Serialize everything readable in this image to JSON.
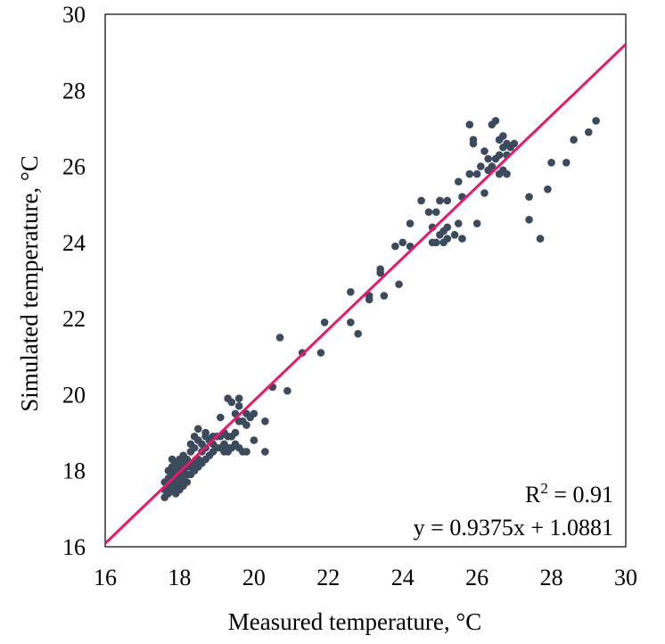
{
  "chart_data": {
    "type": "scatter",
    "xlabel": "Measured temperature, °C",
    "ylabel": "Simulated temperature, °C",
    "xlim": [
      16,
      30
    ],
    "ylim": [
      16,
      30
    ],
    "x_ticks": [
      "16",
      "18",
      "20",
      "22",
      "24",
      "26",
      "28",
      "30"
    ],
    "y_ticks": [
      "16",
      "18",
      "20",
      "22",
      "24",
      "26",
      "28",
      "30"
    ],
    "grid": false,
    "legend": "none",
    "marker_color": "#3b4a5c",
    "fit_line_color": "#e8196b",
    "fit_line": {
      "slope": 0.9375,
      "intercept": 1.0881
    },
    "annotations": {
      "r2_base": "R",
      "r2_sup": "2",
      "r2_value": " = 0.91",
      "equation": "y = 0.9375x + 1.0881"
    },
    "points": [
      [
        17.6,
        17.3
      ],
      [
        17.6,
        17.5
      ],
      [
        17.6,
        17.7
      ],
      [
        17.7,
        17.4
      ],
      [
        17.7,
        17.6
      ],
      [
        17.7,
        17.8
      ],
      [
        17.7,
        18.0
      ],
      [
        17.8,
        17.5
      ],
      [
        17.8,
        17.7
      ],
      [
        17.8,
        17.9
      ],
      [
        17.8,
        18.1
      ],
      [
        17.8,
        18.3
      ],
      [
        17.9,
        17.6
      ],
      [
        17.9,
        17.8
      ],
      [
        17.9,
        18.0
      ],
      [
        17.9,
        18.2
      ],
      [
        17.9,
        17.4
      ],
      [
        18.0,
        17.5
      ],
      [
        18.0,
        17.7
      ],
      [
        18.0,
        17.9
      ],
      [
        18.0,
        18.1
      ],
      [
        18.0,
        18.3
      ],
      [
        18.1,
        17.6
      ],
      [
        18.1,
        17.8
      ],
      [
        18.1,
        18.0
      ],
      [
        18.1,
        18.2
      ],
      [
        18.1,
        18.4
      ],
      [
        18.2,
        17.7
      ],
      [
        18.2,
        17.9
      ],
      [
        18.2,
        18.1
      ],
      [
        18.2,
        18.3
      ],
      [
        18.3,
        17.9
      ],
      [
        18.3,
        18.1
      ],
      [
        18.3,
        18.5
      ],
      [
        18.3,
        18.7
      ],
      [
        18.4,
        18.0
      ],
      [
        18.4,
        18.2
      ],
      [
        18.4,
        18.6
      ],
      [
        18.4,
        18.9
      ],
      [
        18.5,
        18.1
      ],
      [
        18.5,
        18.3
      ],
      [
        18.5,
        18.8
      ],
      [
        18.5,
        19.1
      ],
      [
        18.6,
        18.2
      ],
      [
        18.6,
        18.5
      ],
      [
        18.6,
        18.7
      ],
      [
        18.7,
        18.3
      ],
      [
        18.7,
        18.6
      ],
      [
        18.7,
        18.9
      ],
      [
        18.7,
        19.0
      ],
      [
        18.8,
        18.4
      ],
      [
        18.8,
        18.8
      ],
      [
        18.9,
        18.5
      ],
      [
        18.9,
        18.9
      ],
      [
        18.9,
        18.7
      ],
      [
        19.0,
        18.6
      ],
      [
        19.0,
        18.9
      ],
      [
        19.1,
        18.6
      ],
      [
        19.1,
        18.9
      ],
      [
        19.1,
        19.4
      ],
      [
        19.2,
        18.5
      ],
      [
        19.2,
        18.7
      ],
      [
        19.2,
        19.0
      ],
      [
        19.3,
        18.5
      ],
      [
        19.3,
        18.6
      ],
      [
        19.3,
        18.9
      ],
      [
        19.3,
        19.9
      ],
      [
        19.4,
        18.6
      ],
      [
        19.4,
        18.9
      ],
      [
        19.4,
        19.8
      ],
      [
        19.5,
        18.7
      ],
      [
        19.5,
        19.0
      ],
      [
        19.5,
        19.5
      ],
      [
        19.6,
        18.6
      ],
      [
        19.6,
        19.3
      ],
      [
        19.6,
        19.7
      ],
      [
        19.6,
        19.9
      ],
      [
        19.7,
        18.5
      ],
      [
        19.7,
        19.3
      ],
      [
        19.8,
        18.5
      ],
      [
        19.8,
        19.2
      ],
      [
        19.8,
        19.5
      ],
      [
        19.9,
        19.4
      ],
      [
        20.0,
        18.8
      ],
      [
        20.0,
        19.5
      ],
      [
        20.3,
        18.5
      ],
      [
        20.3,
        19.3
      ],
      [
        20.5,
        20.2
      ],
      [
        20.7,
        21.5
      ],
      [
        20.9,
        20.1
      ],
      [
        21.3,
        21.1
      ],
      [
        21.8,
        21.1
      ],
      [
        21.9,
        21.9
      ],
      [
        22.6,
        21.9
      ],
      [
        22.6,
        22.7
      ],
      [
        22.8,
        21.6
      ],
      [
        23.1,
        22.5
      ],
      [
        23.1,
        22.6
      ],
      [
        23.4,
        23.2
      ],
      [
        23.4,
        23.3
      ],
      [
        23.5,
        22.6
      ],
      [
        23.8,
        23.9
      ],
      [
        23.9,
        22.9
      ],
      [
        24.0,
        24.0
      ],
      [
        24.2,
        23.9
      ],
      [
        24.2,
        24.5
      ],
      [
        24.5,
        25.1
      ],
      [
        24.7,
        24.8
      ],
      [
        24.8,
        24.0
      ],
      [
        24.8,
        24.4
      ],
      [
        24.9,
        24.0
      ],
      [
        24.9,
        24.8
      ],
      [
        25.0,
        24.2
      ],
      [
        25.0,
        25.1
      ],
      [
        25.1,
        24.0
      ],
      [
        25.1,
        24.3
      ],
      [
        25.2,
        24.1
      ],
      [
        25.2,
        24.4
      ],
      [
        25.2,
        25.1
      ],
      [
        25.4,
        24.2
      ],
      [
        25.5,
        24.5
      ],
      [
        25.5,
        25.6
      ],
      [
        25.6,
        24.1
      ],
      [
        25.6,
        25.2
      ],
      [
        25.8,
        25.8
      ],
      [
        25.8,
        27.1
      ],
      [
        25.9,
        26.6
      ],
      [
        25.9,
        26.7
      ],
      [
        26.0,
        24.5
      ],
      [
        26.0,
        25.8
      ],
      [
        26.1,
        26.0
      ],
      [
        26.2,
        25.3
      ],
      [
        26.2,
        26.4
      ],
      [
        26.3,
        25.9
      ],
      [
        26.3,
        26.2
      ],
      [
        26.4,
        26.0
      ],
      [
        26.4,
        27.1
      ],
      [
        26.5,
        26.2
      ],
      [
        26.5,
        27.2
      ],
      [
        26.6,
        25.8
      ],
      [
        26.6,
        26.3
      ],
      [
        26.6,
        26.7
      ],
      [
        26.7,
        25.9
      ],
      [
        26.7,
        26.5
      ],
      [
        26.7,
        26.8
      ],
      [
        26.8,
        25.8
      ],
      [
        26.8,
        26.3
      ],
      [
        26.8,
        26.6
      ],
      [
        26.9,
        26.5
      ],
      [
        27.0,
        26.6
      ],
      [
        27.4,
        24.6
      ],
      [
        27.4,
        25.2
      ],
      [
        27.7,
        24.1
      ],
      [
        27.9,
        25.4
      ],
      [
        28.0,
        26.1
      ],
      [
        28.4,
        26.1
      ],
      [
        28.6,
        26.7
      ],
      [
        29.0,
        26.9
      ],
      [
        29.2,
        27.2
      ]
    ]
  }
}
